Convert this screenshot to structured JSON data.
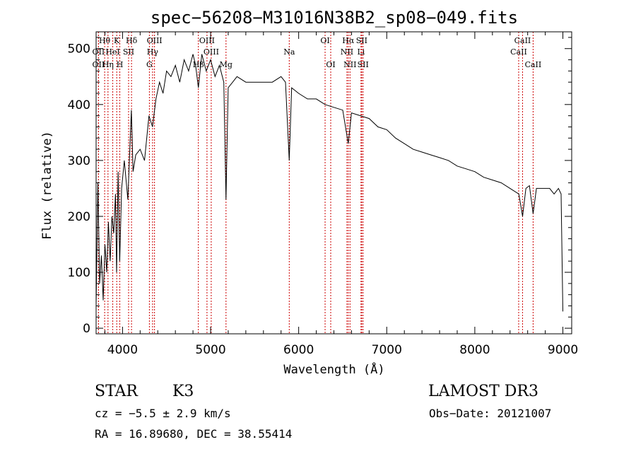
{
  "header": {
    "title": "spec−56208−M31016N38B2_sp08−049.fits"
  },
  "info": {
    "class_label": "STAR",
    "subclass": "K3",
    "survey": "LAMOST DR3",
    "cz": "cz = −5.5 ± 2.9 km/s",
    "obs_date": "Obs−Date: 20121007",
    "coords": "RA =  16.89680, DEC =  38.55414"
  },
  "chart_data": {
    "type": "line",
    "title": "spec−56208−M31016N38B2_sp08−049.fits",
    "xlabel": "Wavelength (Å)",
    "ylabel": "Flux (relative)",
    "xlim": [
      3700,
      9100
    ],
    "ylim": [
      -10,
      530
    ],
    "x_ticks": [
      4000,
      5000,
      6000,
      7000,
      8000,
      9000
    ],
    "y_ticks": [
      0,
      100,
      200,
      300,
      400,
      500
    ],
    "line_color": "#000000",
    "marker_color": "#cc0000",
    "series": [
      {
        "x": [
          3700,
          3720,
          3740,
          3760,
          3780,
          3800,
          3820,
          3840,
          3860,
          3880,
          3900,
          3920,
          3933,
          3950,
          3968,
          3990,
          4020,
          4060,
          4100,
          4120,
          4150,
          4200,
          4250,
          4300,
          4340,
          4380,
          4420,
          4460,
          4500,
          4550,
          4600,
          4650,
          4700,
          4750,
          4800,
          4830,
          4861,
          4900,
          4950,
          5000,
          5050,
          5100,
          5150,
          5175,
          5200,
          5250,
          5300,
          5400,
          5500,
          5600,
          5700,
          5800,
          5850,
          5893,
          5920,
          6000,
          6100,
          6200,
          6300,
          6400,
          6500,
          6563,
          6600,
          6700,
          6800,
          6900,
          7000,
          7100,
          7200,
          7300,
          7400,
          7500,
          7600,
          7700,
          7800,
          7900,
          8000,
          8100,
          8200,
          8300,
          8400,
          8500,
          8542,
          8580,
          8620,
          8662,
          8700,
          8800,
          8850,
          8900,
          8950,
          8980,
          9000
        ],
        "y": [
          40,
          260,
          80,
          130,
          50,
          150,
          100,
          190,
          120,
          200,
          170,
          240,
          100,
          280,
          120,
          250,
          300,
          230,
          390,
          280,
          310,
          320,
          300,
          380,
          360,
          410,
          440,
          420,
          460,
          450,
          470,
          440,
          480,
          460,
          490,
          470,
          430,
          490,
          460,
          480,
          450,
          470,
          440,
          230,
          430,
          440,
          450,
          440,
          440,
          440,
          440,
          450,
          440,
          300,
          430,
          420,
          410,
          410,
          400,
          395,
          390,
          330,
          385,
          380,
          375,
          360,
          355,
          340,
          330,
          320,
          315,
          310,
          305,
          300,
          290,
          285,
          280,
          270,
          265,
          260,
          250,
          240,
          200,
          250,
          255,
          205,
          250,
          250,
          250,
          240,
          250,
          240,
          30
        ]
      }
    ],
    "lines": [
      {
        "name": "Hθ",
        "wl": 3797,
        "row": 1
      },
      {
        "name": "OII",
        "wl": 3727,
        "row": 2
      },
      {
        "name": "OII",
        "wl": 3727,
        "row": 3
      },
      {
        "name": "Hη",
        "wl": 3835,
        "row": 3
      },
      {
        "name": "HeI",
        "wl": 3889,
        "row": 2
      },
      {
        "name": "K",
        "wl": 3934,
        "row": 1
      },
      {
        "name": "H",
        "wl": 3969,
        "row": 3
      },
      {
        "name": "SII",
        "wl": 4069,
        "row": 2
      },
      {
        "name": "Hδ",
        "wl": 4102,
        "row": 1
      },
      {
        "name": "OIII",
        "wl": 4363,
        "row": 1
      },
      {
        "name": "Hγ",
        "wl": 4341,
        "row": 2
      },
      {
        "name": "G",
        "wl": 4305,
        "row": 3
      },
      {
        "name": "Hβ",
        "wl": 4861,
        "row": 3
      },
      {
        "name": "OIII",
        "wl": 4959,
        "row": 1
      },
      {
        "name": "OIII",
        "wl": 5007,
        "row": 2
      },
      {
        "name": "Mg",
        "wl": 5175,
        "row": 3
      },
      {
        "name": "Na",
        "wl": 5893,
        "row": 2
      },
      {
        "name": "OI",
        "wl": 6300,
        "row": 1
      },
      {
        "name": "OI",
        "wl": 6364,
        "row": 3
      },
      {
        "name": "Hα",
        "wl": 6563,
        "row": 1
      },
      {
        "name": "NII",
        "wl": 6548,
        "row": 2
      },
      {
        "name": "NII",
        "wl": 6583,
        "row": 3
      },
      {
        "name": "SII",
        "wl": 6716,
        "row": 1
      },
      {
        "name": "Li",
        "wl": 6708,
        "row": 2
      },
      {
        "name": "SII",
        "wl": 6731,
        "row": 3
      },
      {
        "name": "CaII",
        "wl": 8542,
        "row": 1
      },
      {
        "name": "CaII",
        "wl": 8498,
        "row": 2
      },
      {
        "name": "CaII",
        "wl": 8662,
        "row": 3
      }
    ]
  }
}
